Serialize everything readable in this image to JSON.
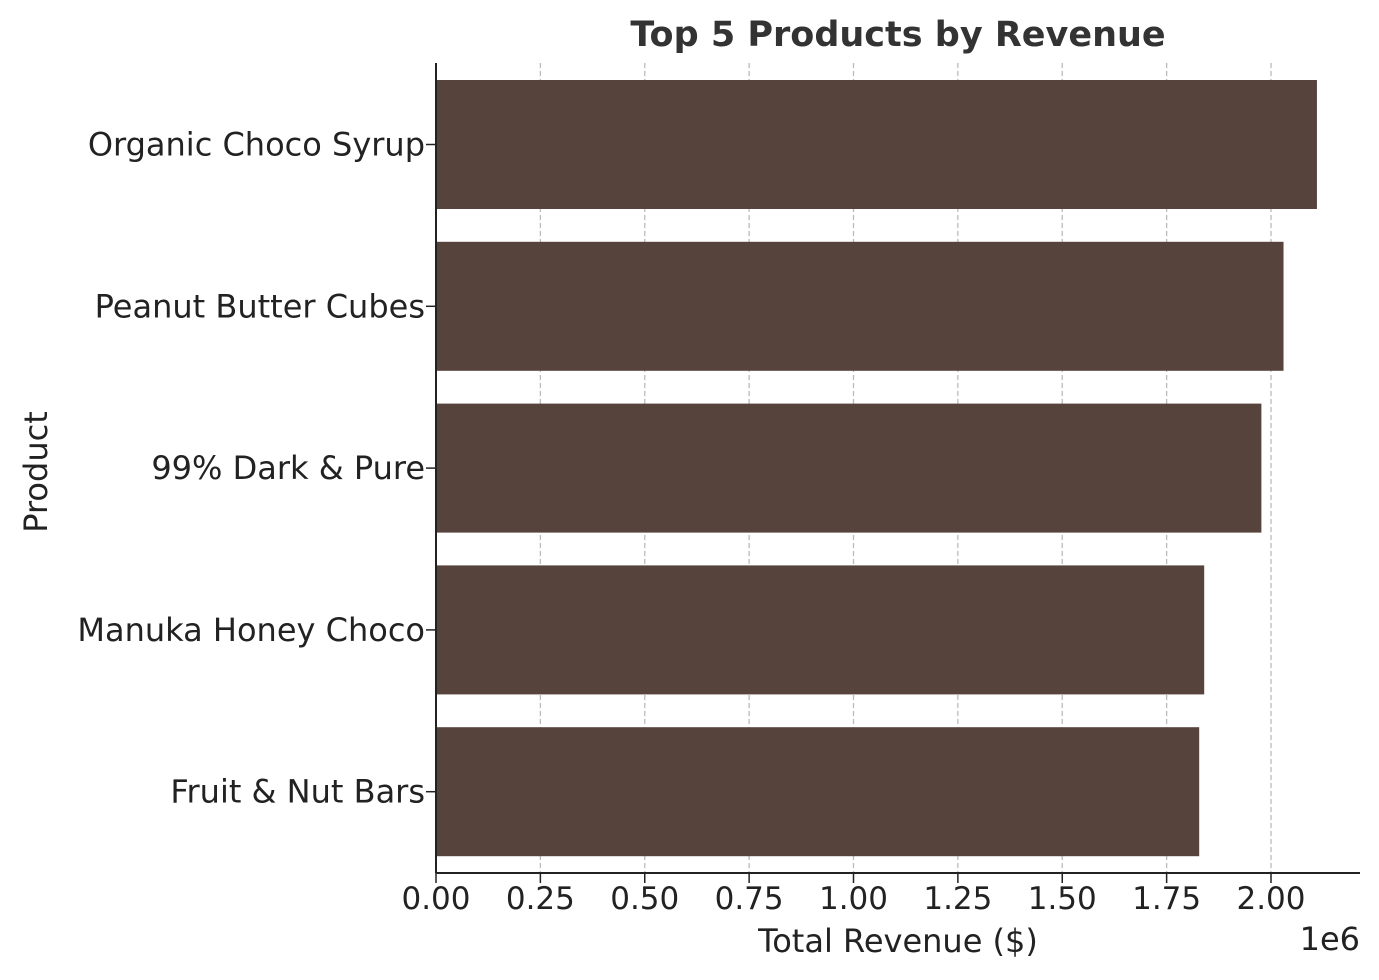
{
  "chart_data": {
    "type": "bar",
    "orientation": "horizontal",
    "title": "Top 5 Products by Revenue",
    "xlabel": "Total Revenue ($)",
    "ylabel": "Product",
    "x_scale_label": "1e6",
    "xlim": [
      0,
      2.2
    ],
    "x_ticks": [
      0.0,
      0.25,
      0.5,
      0.75,
      1.0,
      1.25,
      1.5,
      1.75,
      2.0
    ],
    "x_tick_labels": [
      "0.00",
      "0.25",
      "0.50",
      "0.75",
      "1.00",
      "1.25",
      "1.50",
      "1.75",
      "2.00"
    ],
    "categories": [
      "Organic Choco Syrup",
      "Peanut Butter Cubes",
      "99% Dark & Pure",
      "Manuka Honey Choco",
      "Fruit & Nut Bars"
    ],
    "values": [
      2110000,
      2030000,
      1977000,
      1840000,
      1828000
    ],
    "value_scale": 1000000,
    "grid": "vertical dashed",
    "bar_color": "#56433c",
    "grid_color": "#bbbbbb",
    "axis_color": "#222222"
  }
}
